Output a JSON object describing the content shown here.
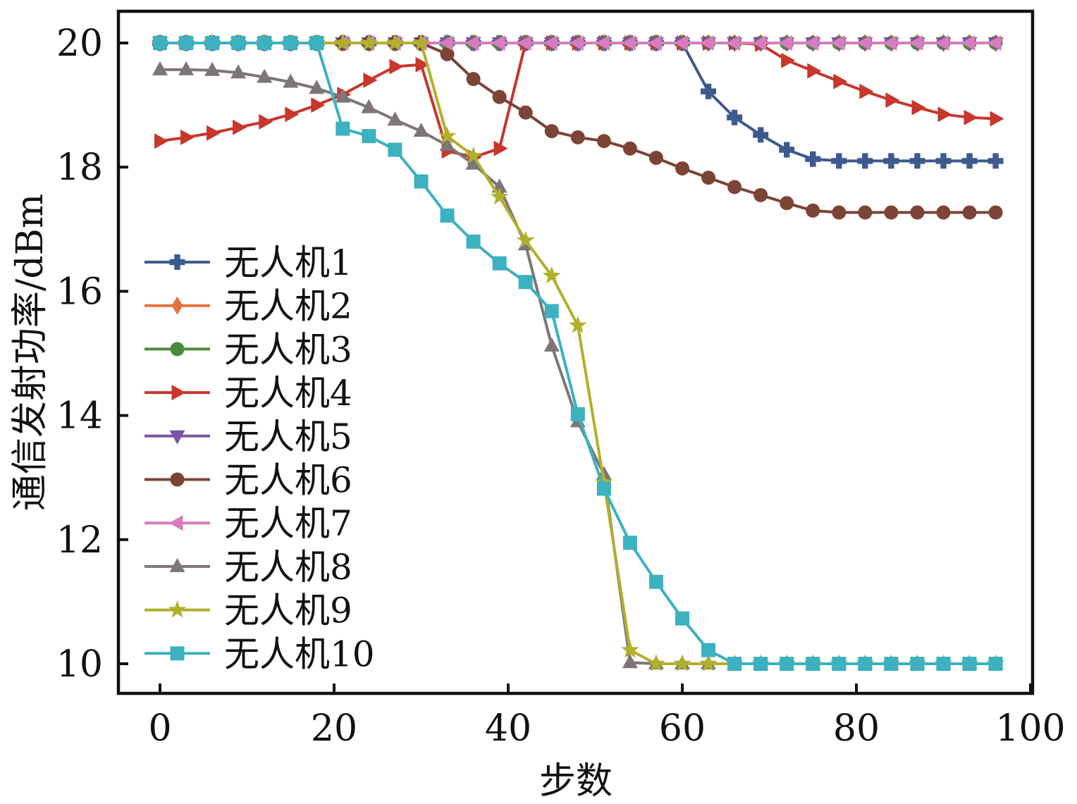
{
  "chart_data": {
    "type": "line",
    "title": "",
    "xlabel": "步数",
    "ylabel": "通信发射功率/dBm",
    "xlim": [
      -5,
      100
    ],
    "ylim": [
      9.5,
      20.5
    ],
    "xticks": [
      0,
      20,
      40,
      60,
      80,
      100
    ],
    "yticks": [
      10,
      12,
      14,
      16,
      18,
      20
    ],
    "x": [
      0,
      3,
      6,
      9,
      12,
      15,
      18,
      21,
      24,
      27,
      30,
      33,
      36,
      39,
      42,
      45,
      48,
      51,
      54,
      57,
      60,
      63,
      66,
      69,
      72,
      75,
      78,
      81,
      84,
      87,
      90,
      93,
      96
    ],
    "legend_position": "left-middle",
    "series": [
      {
        "name": "无人机1",
        "color": "#3d5a8e",
        "marker": "plus",
        "values": [
          20,
          20,
          20,
          20,
          20,
          20,
          20,
          20,
          20,
          20,
          20,
          20,
          20,
          20,
          20,
          20,
          20,
          20,
          20,
          20,
          20,
          19.22,
          18.8,
          18.52,
          18.28,
          18.13,
          18.1,
          18.1,
          18.1,
          18.1,
          18.1,
          18.1,
          18.1
        ]
      },
      {
        "name": "无人机2",
        "color": "#e2733a",
        "marker": "diamond",
        "values": [
          20,
          20,
          20,
          20,
          20,
          20,
          20,
          20,
          20,
          20,
          20,
          20,
          20,
          20,
          20,
          20,
          20,
          20,
          20,
          20,
          20,
          20,
          20,
          20,
          20,
          20,
          20,
          20,
          20,
          20,
          20,
          20,
          20
        ]
      },
      {
        "name": "无人机3",
        "color": "#4a8b37",
        "marker": "circle",
        "values": [
          20,
          20,
          20,
          20,
          20,
          20,
          20,
          20,
          20,
          20,
          20,
          20,
          20,
          20,
          20,
          20,
          20,
          20,
          20,
          20,
          20,
          20,
          20,
          20,
          20,
          20,
          20,
          20,
          20,
          20,
          20,
          20,
          20
        ]
      },
      {
        "name": "无人机4",
        "color": "#c8362c",
        "marker": "triangle-right",
        "values": [
          18.42,
          18.48,
          18.55,
          18.64,
          18.73,
          18.85,
          19.0,
          19.17,
          19.4,
          19.62,
          19.65,
          18.26,
          18.16,
          18.3,
          20,
          20,
          20,
          20,
          20,
          20,
          20,
          20,
          20,
          19.98,
          19.72,
          19.55,
          19.38,
          19.22,
          19.08,
          18.96,
          18.85,
          18.8,
          18.78
        ]
      },
      {
        "name": "无人机5",
        "color": "#7a55a3",
        "marker": "triangle-down",
        "values": [
          20,
          20,
          20,
          20,
          20,
          20,
          20,
          20,
          20,
          20,
          20,
          20,
          20,
          20,
          20,
          20,
          20,
          20,
          20,
          20,
          20,
          20,
          20,
          20,
          20,
          20,
          20,
          20,
          20,
          20,
          20,
          20,
          20
        ]
      },
      {
        "name": "无人机6",
        "color": "#7b4437",
        "marker": "circle",
        "values": [
          20,
          20,
          20,
          20,
          20,
          20,
          20,
          20,
          20,
          20,
          20,
          19.82,
          19.42,
          19.13,
          18.88,
          18.58,
          18.48,
          18.42,
          18.3,
          18.15,
          17.98,
          17.83,
          17.68,
          17.55,
          17.42,
          17.3,
          17.27,
          17.27,
          17.27,
          17.27,
          17.27,
          17.27,
          17.27
        ]
      },
      {
        "name": "无人机7",
        "color": "#d77dbd",
        "marker": "triangle-left",
        "values": [
          20,
          20,
          20,
          20,
          20,
          20,
          20,
          20,
          20,
          20,
          20,
          20,
          20,
          20,
          20,
          20,
          20,
          20,
          20,
          20,
          20,
          20,
          20,
          20,
          20,
          20,
          20,
          20,
          20,
          20,
          20,
          20,
          20
        ]
      },
      {
        "name": "无人机8",
        "color": "#7d7578",
        "marker": "triangle-up",
        "values": [
          19.57,
          19.57,
          19.56,
          19.52,
          19.45,
          19.37,
          19.27,
          19.13,
          18.96,
          18.76,
          18.58,
          18.35,
          18.05,
          17.68,
          16.75,
          15.12,
          13.9,
          13.05,
          10.02,
          10,
          10,
          10,
          10,
          10,
          10,
          10,
          10,
          10,
          10,
          10,
          10,
          10,
          10
        ]
      },
      {
        "name": "无人机9",
        "color": "#b1b02c",
        "marker": "star",
        "values": [
          20,
          20,
          20,
          20,
          20,
          20,
          20,
          20,
          20,
          20,
          20,
          18.5,
          18.18,
          17.52,
          16.82,
          16.25,
          15.45,
          12.92,
          10.22,
          10,
          10,
          10,
          10,
          10,
          10,
          10,
          10,
          10,
          10,
          10,
          10,
          10,
          10
        ]
      },
      {
        "name": "无人机10",
        "color": "#3cb1c0",
        "marker": "square",
        "values": [
          20,
          20,
          20,
          20,
          20,
          20,
          20,
          18.62,
          18.5,
          18.28,
          17.77,
          17.22,
          16.8,
          16.45,
          16.15,
          15.68,
          14.02,
          12.82,
          11.95,
          11.32,
          10.73,
          10.22,
          10,
          10,
          10,
          10,
          10,
          10,
          10,
          10,
          10,
          10,
          10
        ]
      }
    ]
  }
}
